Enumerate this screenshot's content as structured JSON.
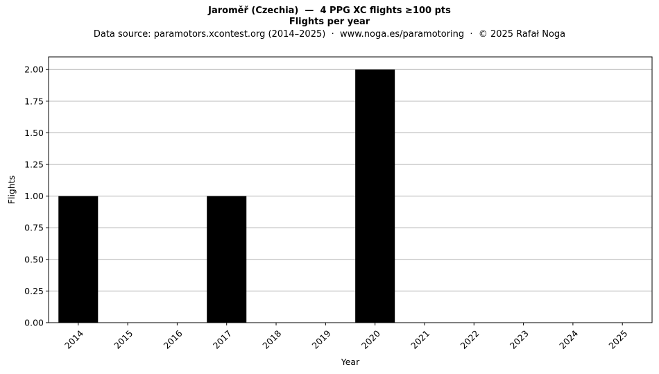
{
  "header": {
    "title": "Jaroměř (Czechia)  —  4 PPG XC flights ≥100 pts",
    "subtitle": "Flights per year",
    "source": "Data source: paramotors.xcontest.org (2014–2025)  ·  www.noga.es/paramotoring  ·  © 2025 Rafał Noga"
  },
  "chart_data": {
    "type": "bar",
    "title": "Jaroměř (Czechia)  —  4 PPG XC flights ≥100 pts",
    "subtitle": "Flights per year",
    "xlabel": "Year",
    "ylabel": "Flights",
    "categories": [
      "2014",
      "2015",
      "2016",
      "2017",
      "2018",
      "2019",
      "2020",
      "2021",
      "2022",
      "2023",
      "2024",
      "2025"
    ],
    "values": [
      1,
      0,
      0,
      1,
      0,
      0,
      2,
      0,
      0,
      0,
      0,
      0
    ],
    "ylim": [
      0,
      2.1
    ],
    "yticks": [
      "0.00",
      "0.25",
      "0.50",
      "0.75",
      "1.00",
      "1.25",
      "1.50",
      "1.75",
      "2.00"
    ],
    "grid": "y",
    "bar_color": "#000000",
    "grid_color": "#b0b0b0"
  }
}
